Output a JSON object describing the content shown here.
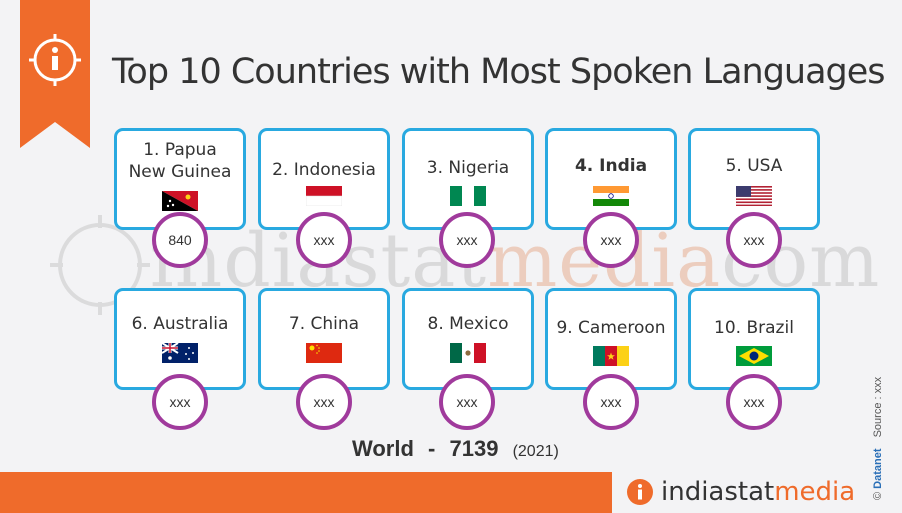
{
  "header": {
    "title": "Top 10 Countries with Most Spoken Languages"
  },
  "countries": [
    {
      "name": "1. Papua\nNew Guinea",
      "value": "840",
      "flag": "papua-new-guinea-flag"
    },
    {
      "name": "2. Indonesia",
      "value": "xxx",
      "flag": "indonesia-flag"
    },
    {
      "name": "3. Nigeria",
      "value": "xxx",
      "flag": "nigeria-flag"
    },
    {
      "name": "4. India",
      "value": "xxx",
      "flag": "india-flag"
    },
    {
      "name": "5. USA",
      "value": "xxx",
      "flag": "usa-flag"
    },
    {
      "name": "6. Australia",
      "value": "xxx",
      "flag": "australia-flag"
    },
    {
      "name": "7. China",
      "value": "xxx",
      "flag": "china-flag"
    },
    {
      "name": "8. Mexico",
      "value": "xxx",
      "flag": "mexico-flag"
    },
    {
      "name": "9. Cameroon",
      "value": "xxx",
      "flag": "cameroon-flag"
    },
    {
      "name": "10. Brazil",
      "value": "xxx",
      "flag": "brazil-flag"
    }
  ],
  "footer": {
    "world_label": "World",
    "dash": "-",
    "world_value": "7139",
    "year": "(2021)",
    "brand_prefix": "indiastat",
    "brand_suffix": "media",
    "copyright": "©",
    "datanet": "Datanet",
    "source": "Source : xxx"
  },
  "watermark": {
    "prefix": "indiastat",
    "middle": "media",
    "suffix": "com"
  },
  "colors": {
    "accent": "#ef6b2b",
    "card_border": "#29a9e0",
    "circle_border": "#a03a9c"
  }
}
